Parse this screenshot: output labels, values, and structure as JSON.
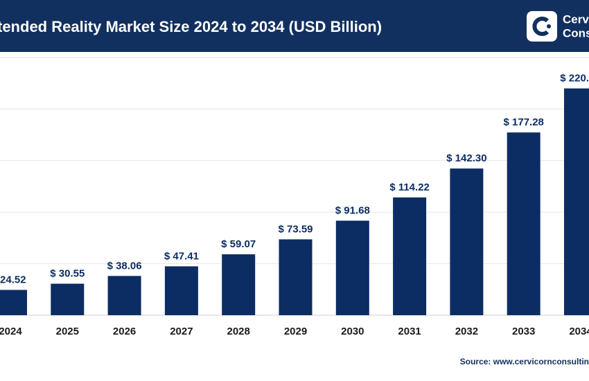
{
  "chart_data": {
    "type": "bar",
    "title": "tended Reality Market Size 2024 to 2034 (USD Billion)",
    "brand": [
      "Cervic",
      "Consu"
    ],
    "source": "Source: www.cervicornconsultin",
    "categories": [
      "2024",
      "2025",
      "2026",
      "2027",
      "2028",
      "2029",
      "2030",
      "2031",
      "2032",
      "2033",
      "2034"
    ],
    "values": [
      24.52,
      30.55,
      38.06,
      47.41,
      59.07,
      73.59,
      91.68,
      114.22,
      142.3,
      177.28,
      220
    ],
    "value_labels": [
      "24.52",
      "$ 30.55",
      "$ 38.06",
      "$ 47.41",
      "$ 59.07",
      "$ 73.59",
      "$ 91.68",
      "$ 114.22",
      "$ 142.30",
      "$ 177.28",
      "$ 220."
    ],
    "color": "#0c2d63",
    "ylim": [
      0,
      250
    ],
    "yticks": [
      0,
      50,
      100,
      150,
      200,
      250
    ],
    "grid": true
  }
}
